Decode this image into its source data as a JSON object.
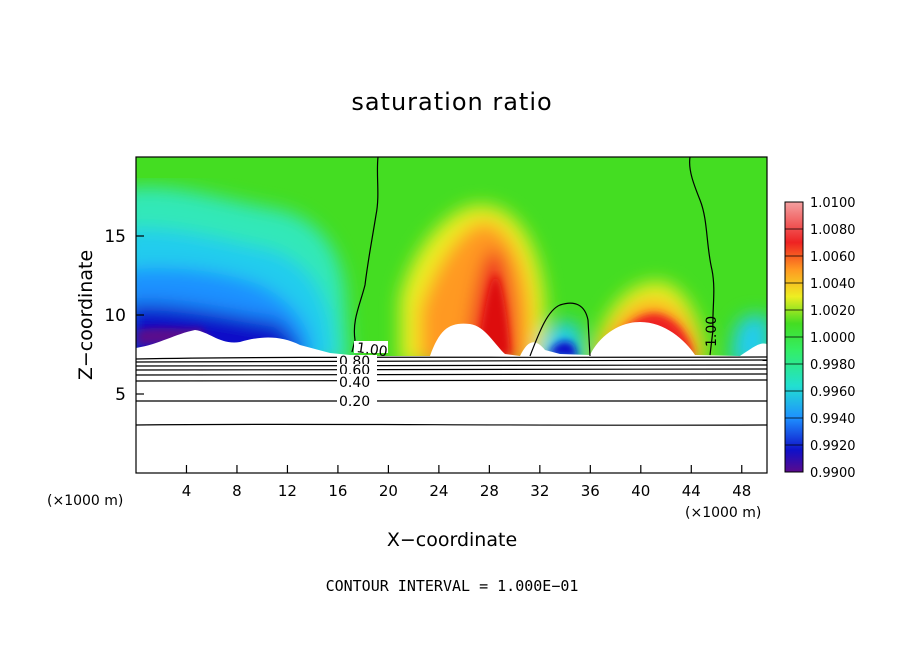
{
  "chart_data": {
    "type": "heatmap",
    "title": "saturation ratio",
    "xlabel": "X−coordinate",
    "ylabel": "Z−coordinate",
    "x_unit_left": "(×1000 m)",
    "x_unit_right": "(×1000 m)",
    "xlim": [
      0,
      50
    ],
    "ylim": [
      0,
      20
    ],
    "x_ticks": [
      4,
      8,
      12,
      16,
      20,
      24,
      28,
      32,
      36,
      40,
      44,
      48
    ],
    "y_ticks": [
      5,
      10,
      15
    ],
    "colorbar": {
      "min": 0.99,
      "max": 1.01,
      "labels": [
        "1.0100",
        "1.0080",
        "1.0060",
        "1.0040",
        "1.0020",
        "1.0000",
        "0.9980",
        "0.9960",
        "0.9940",
        "0.9920",
        "0.9900"
      ]
    },
    "contour_labels": [
      "1.00",
      "0.80",
      "0.60",
      "0.40",
      "0.20",
      "1.00"
    ],
    "footer": "CONTOUR INTERVAL = 1.000E−01",
    "colors": {
      "low": "#5a0a8c",
      "mid": "#33dd22",
      "high": "#ee3333"
    }
  }
}
